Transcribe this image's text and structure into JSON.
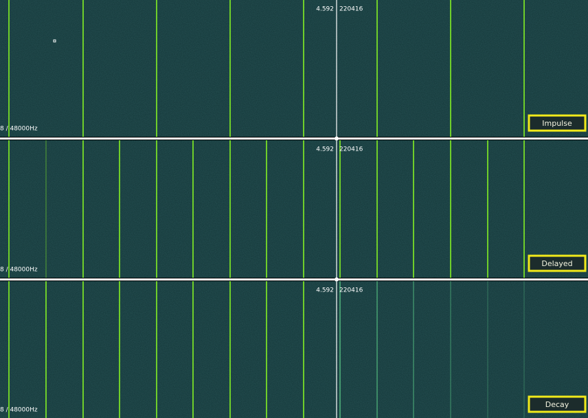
{
  "panels": [
    {
      "time": "4.592",
      "position": "220416",
      "format": "8 / 48000Hz",
      "button": "Impulse"
    },
    {
      "time": "4.592",
      "position": "220416",
      "format": "8 / 48000Hz",
      "button": "Delayed"
    },
    {
      "time": "4.592",
      "position": "220416",
      "format": "8 / 48000Hz",
      "button": "Decay"
    }
  ]
}
